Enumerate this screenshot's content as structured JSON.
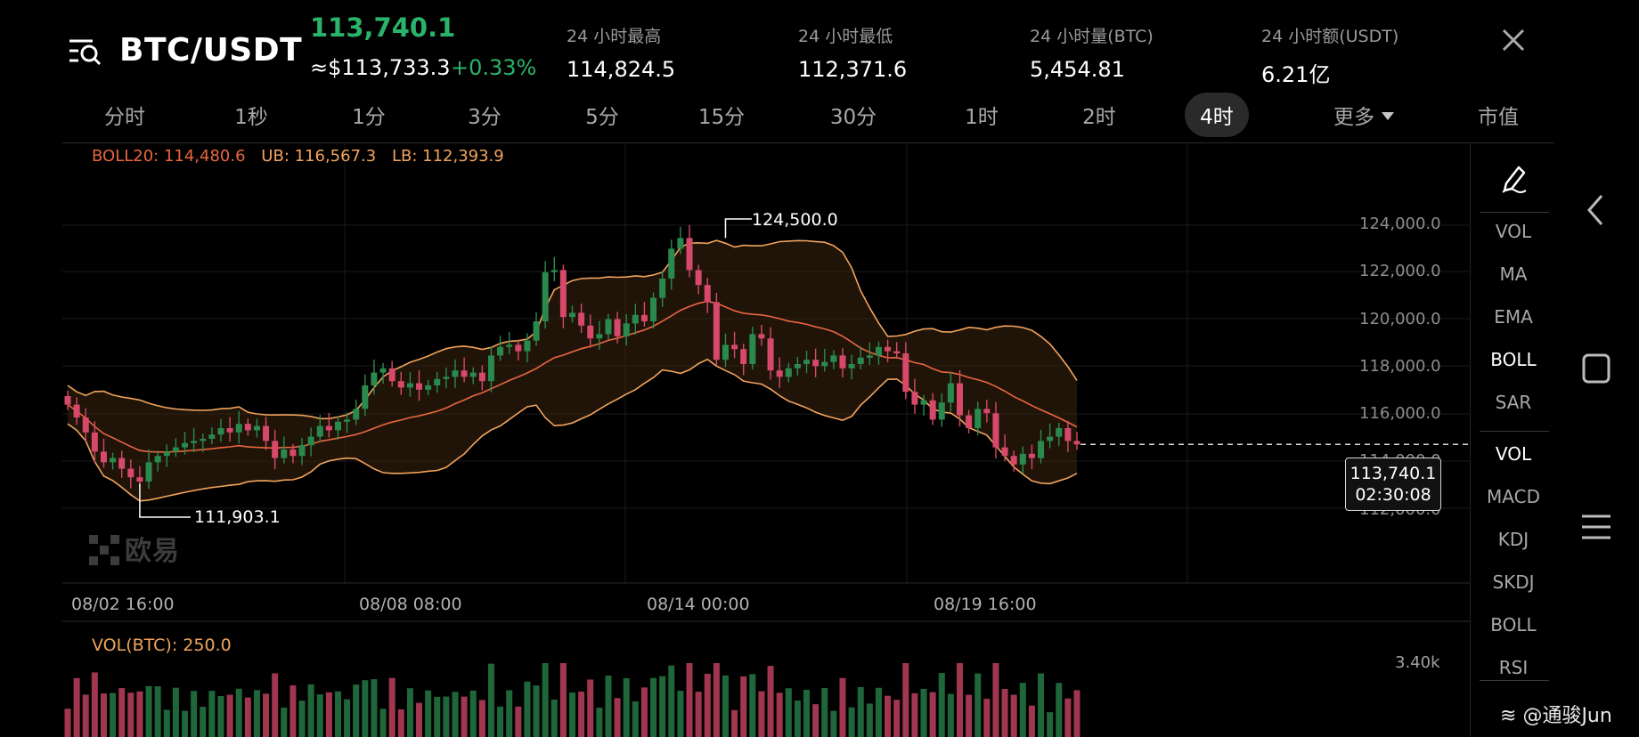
{
  "header": {
    "pair": "BTC/USDT",
    "last_price": "113,740.1",
    "usd_price": "≈$113,733.3",
    "change_pct": "+0.33%",
    "stats": [
      {
        "label": "24 小时最高",
        "value": "114,824.5"
      },
      {
        "label": "24 小时最低",
        "value": "112,371.6"
      },
      {
        "label": "24 小时量(BTC)",
        "value": "5,454.81"
      },
      {
        "label": "24 小时额(USDT)",
        "value": "6.21亿"
      }
    ]
  },
  "tabs": [
    {
      "label": "分时"
    },
    {
      "label": "1秒"
    },
    {
      "label": "1分"
    },
    {
      "label": "3分"
    },
    {
      "label": "5分"
    },
    {
      "label": "15分"
    },
    {
      "label": "30分"
    },
    {
      "label": "1时"
    },
    {
      "label": "2时"
    },
    {
      "label": "4时",
      "active": true
    },
    {
      "label": "更多"
    },
    {
      "label": "市值"
    }
  ],
  "chart": {
    "boll_legend": {
      "boll": "BOLL20: 114,480.6",
      "ub": "UB: 116,567.3",
      "lb": "LB: 112,393.9"
    },
    "y_ticks": [
      "124,000.0",
      "122,000.0",
      "120,000.0",
      "118,000.0",
      "116,000.0",
      "114,000.0",
      "112,000.0"
    ],
    "x_ticks": [
      "08/02 16:00",
      "08/08 08:00",
      "08/14 00:00",
      "08/19 16:00"
    ],
    "high_annotation": "124,500.0",
    "low_annotation": "111,903.1",
    "current_price_tag": {
      "price": "113,740.1",
      "countdown": "02:30:08"
    },
    "watermark": "欧易",
    "vol_legend": "VOL(BTC): 250.0",
    "vol_max_label": "3.40k",
    "colors": {
      "up": "#2a8a4e",
      "down": "#d6496a",
      "boll_mid": "#e9663f",
      "boll_band": "#f2a35c"
    }
  },
  "sidebar": {
    "main_indicators": [
      {
        "label": "VOL"
      },
      {
        "label": "MA"
      },
      {
        "label": "EMA"
      },
      {
        "label": "BOLL",
        "active": true
      },
      {
        "label": "SAR"
      }
    ],
    "sub_indicators": [
      {
        "label": "VOL",
        "active": true
      },
      {
        "label": "MACD"
      },
      {
        "label": "KDJ"
      },
      {
        "label": "SKDJ"
      },
      {
        "label": "BOLL"
      },
      {
        "label": "RSI"
      }
    ]
  },
  "footer": {
    "watermark": "@通骏Jun"
  }
}
